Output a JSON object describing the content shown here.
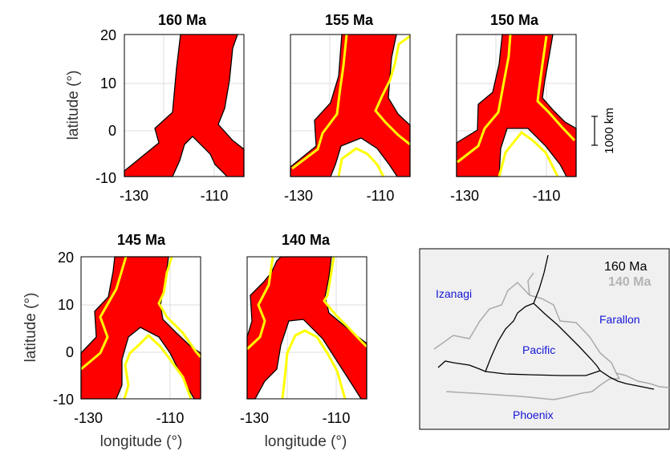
{
  "panels_top": [
    {
      "title": "160 Ma"
    },
    {
      "title": "155 Ma"
    },
    {
      "title": "150 Ma"
    }
  ],
  "panels_bottom": [
    {
      "title": "145 Ma"
    },
    {
      "title": "140 Ma"
    }
  ],
  "axes": {
    "ylabel": "latitude (°)",
    "xlabel": "longitude (°)",
    "yticks": [
      "20",
      "10",
      "0",
      "-10"
    ],
    "xticks": [
      "-130",
      "-110"
    ]
  },
  "scale_bar": {
    "label": "1000 km"
  },
  "inset": {
    "legend": {
      "current": "160 Ma",
      "reference": "140 Ma"
    },
    "plates": {
      "izanagi": "Izanagi",
      "farallon": "Farallon",
      "pacific": "Pacific",
      "phoenix": "Phoenix"
    },
    "colors": {
      "current": "#000000",
      "reference": "#aaaaaa",
      "background": "#f0f0f0",
      "labels": "#1515d8"
    }
  },
  "colors": {
    "fill": "#ff0000",
    "previous_outline": "#ffff00",
    "outline": "#000000",
    "grid": "#dddddd"
  }
}
